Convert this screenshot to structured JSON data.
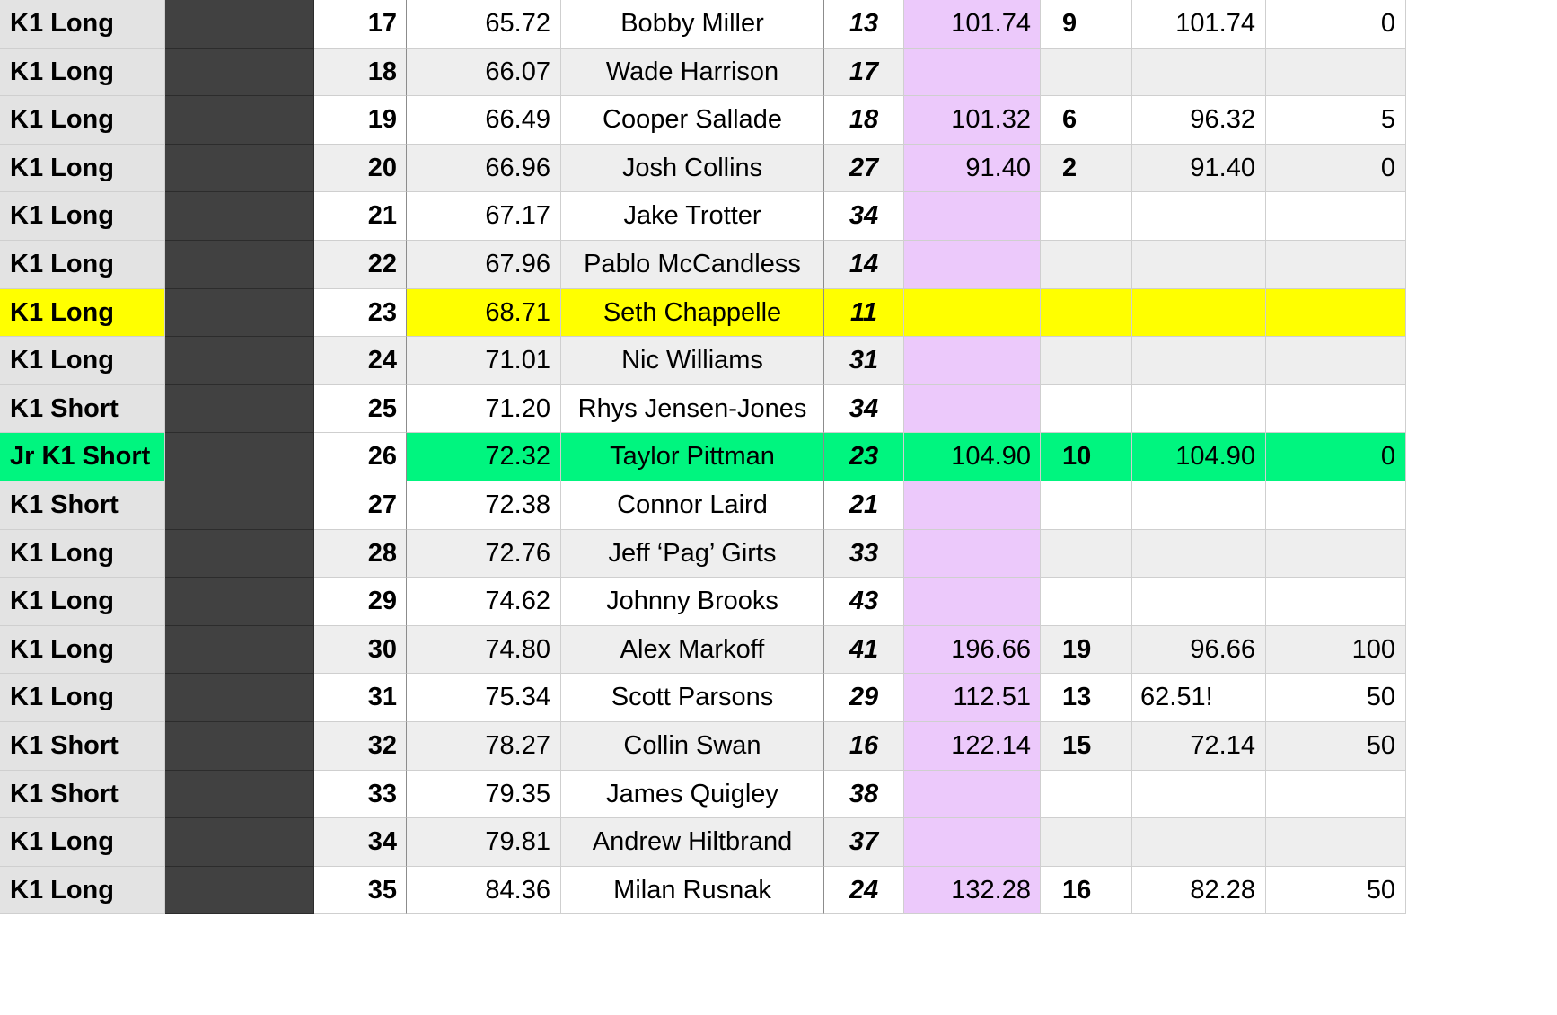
{
  "colors": {
    "class_column": "#e3e3e3",
    "dark_column": "#414141",
    "total_column": "#ecc9fb",
    "alt_row": "#eeeeee",
    "highlight_yellow": "#ffff00",
    "highlight_green": "#00f57f"
  },
  "rows": [
    {
      "class": "K1 Long",
      "num": "17",
      "time": "65.72",
      "name": "Bobby Miller",
      "bib": "13",
      "total": "101.74",
      "pen": "9",
      "raw": "101.74",
      "diff": "0",
      "highlight": ""
    },
    {
      "class": "K1 Long",
      "num": "18",
      "time": "66.07",
      "name": "Wade Harrison",
      "bib": "17",
      "total": "",
      "pen": "",
      "raw": "",
      "diff": "",
      "highlight": ""
    },
    {
      "class": "K1 Long",
      "num": "19",
      "time": "66.49",
      "name": "Cooper Sallade",
      "bib": "18",
      "total": "101.32",
      "pen": "6",
      "raw": "96.32",
      "diff": "5",
      "highlight": ""
    },
    {
      "class": "K1 Long",
      "num": "20",
      "time": "66.96",
      "name": "Josh Collins",
      "bib": "27",
      "total": "91.40",
      "pen": "2",
      "raw": "91.40",
      "diff": "0",
      "highlight": ""
    },
    {
      "class": "K1 Long",
      "num": "21",
      "time": "67.17",
      "name": "Jake Trotter",
      "bib": "34",
      "total": "",
      "pen": "",
      "raw": "",
      "diff": "",
      "highlight": ""
    },
    {
      "class": "K1 Long",
      "num": "22",
      "time": "67.96",
      "name": "Pablo McCandless",
      "bib": "14",
      "total": "",
      "pen": "",
      "raw": "",
      "diff": "",
      "highlight": ""
    },
    {
      "class": "K1 Long",
      "num": "23",
      "time": "68.71",
      "name": "Seth Chappelle",
      "bib": "11",
      "total": "",
      "pen": "",
      "raw": "",
      "diff": "",
      "highlight": "yellow"
    },
    {
      "class": "K1 Long",
      "num": "24",
      "time": "71.01",
      "name": "Nic Williams",
      "bib": "31",
      "total": "",
      "pen": "",
      "raw": "",
      "diff": "",
      "highlight": ""
    },
    {
      "class": "K1 Short",
      "num": "25",
      "time": "71.20",
      "name": "Rhys Jensen-Jones",
      "bib": "34",
      "total": "",
      "pen": "",
      "raw": "",
      "diff": "",
      "highlight": ""
    },
    {
      "class": "Jr K1 Short",
      "num": "26",
      "time": "72.32",
      "name": "Taylor Pittman",
      "bib": "23",
      "total": "104.90",
      "pen": "10",
      "raw": "104.90",
      "diff": "0",
      "highlight": "green"
    },
    {
      "class": "K1 Short",
      "num": "27",
      "time": "72.38",
      "name": "Connor Laird",
      "bib": "21",
      "total": "",
      "pen": "",
      "raw": "",
      "diff": "",
      "highlight": ""
    },
    {
      "class": "K1 Long",
      "num": "28",
      "time": "72.76",
      "name": "Jeff ‘Pag’ Girts",
      "bib": "33",
      "total": "",
      "pen": "",
      "raw": "",
      "diff": "",
      "highlight": ""
    },
    {
      "class": "K1 Long",
      "num": "29",
      "time": "74.62",
      "name": "Johnny Brooks",
      "bib": "43",
      "total": "",
      "pen": "",
      "raw": "",
      "diff": "",
      "highlight": ""
    },
    {
      "class": "K1 Long",
      "num": "30",
      "time": "74.80",
      "name": "Alex Markoff",
      "bib": "41",
      "total": "196.66",
      "pen": "19",
      "raw": "96.66",
      "diff": "100",
      "highlight": ""
    },
    {
      "class": "K1 Long",
      "num": "31",
      "time": "75.34",
      "name": "Scott Parsons",
      "bib": "29",
      "total": "112.51",
      "pen": "13",
      "raw": "62.51!",
      "diff": "50",
      "highlight": ""
    },
    {
      "class": "K1 Short",
      "num": "32",
      "time": "78.27",
      "name": "Collin Swan",
      "bib": "16",
      "total": "122.14",
      "pen": "15",
      "raw": "72.14",
      "diff": "50",
      "highlight": ""
    },
    {
      "class": "K1 Short",
      "num": "33",
      "time": "79.35",
      "name": "James Quigley",
      "bib": "38",
      "total": "",
      "pen": "",
      "raw": "",
      "diff": "",
      "highlight": ""
    },
    {
      "class": "K1 Long",
      "num": "34",
      "time": "79.81",
      "name": "Andrew Hiltbrand",
      "bib": "37",
      "total": "",
      "pen": "",
      "raw": "",
      "diff": "",
      "highlight": ""
    },
    {
      "class": "K1 Long",
      "num": "35",
      "time": "84.36",
      "name": "Milan Rusnak",
      "bib": "24",
      "total": "132.28",
      "pen": "16",
      "raw": "82.28",
      "diff": "50",
      "highlight": ""
    }
  ]
}
